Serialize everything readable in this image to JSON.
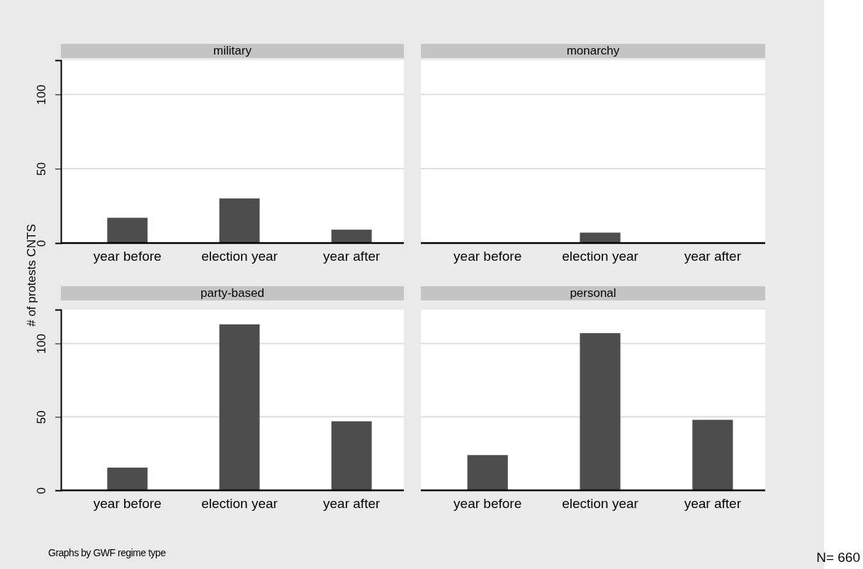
{
  "chart_data": [
    {
      "type": "bar",
      "title": "military",
      "ylabel": "# of protests CNTS",
      "categories": [
        "year before",
        "election year",
        "year after"
      ],
      "values": [
        17,
        30,
        9
      ],
      "color": "#4d4d4d",
      "ylim": [
        0,
        123
      ],
      "yticks": [
        0,
        50,
        100
      ],
      "grid": "y",
      "tick_labels": "xy"
    },
    {
      "type": "bar",
      "title": "monarchy",
      "categories": [
        "year before",
        "election year",
        "year after"
      ],
      "values": [
        0,
        7,
        0
      ],
      "color": "#4d4d4d",
      "ylim": [
        0,
        123
      ],
      "yticks": [
        0,
        50,
        100
      ],
      "grid": "y",
      "tick_labels": "x"
    },
    {
      "type": "bar",
      "title": "party-based",
      "categories": [
        "year before",
        "election year",
        "year after"
      ],
      "values": [
        15.5,
        113,
        47
      ],
      "color": "#4d4d4d",
      "ylim": [
        0,
        123
      ],
      "yticks": [
        0,
        50,
        100
      ],
      "grid": "y",
      "tick_labels": "xy",
      "annotations": [
        "Graphs by GWF regime type"
      ]
    },
    {
      "type": "bar",
      "title": "personal",
      "categories": [
        "year before",
        "election year",
        "year after"
      ],
      "values": [
        24,
        107,
        48
      ],
      "color": "#4d4d4d",
      "ylim": [
        0,
        123
      ],
      "yticks": [
        0,
        50,
        100
      ],
      "grid": "y",
      "tick_labels": "x",
      "annotations": [
        "N= 660"
      ]
    }
  ]
}
